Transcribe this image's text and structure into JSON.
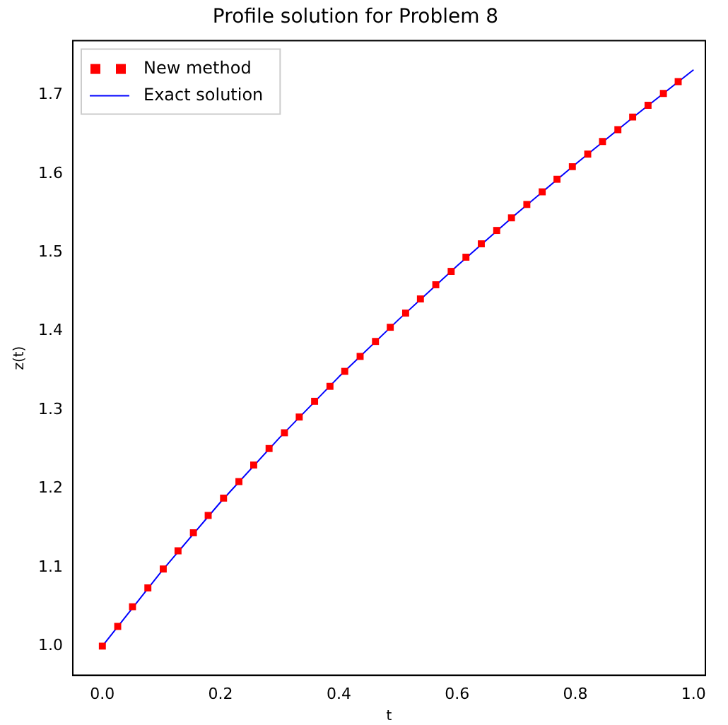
{
  "chart_data": {
    "type": "line",
    "title": "Profile solution for Problem 8",
    "xlabel": "t",
    "ylabel": "z(t)",
    "xlim": [
      -0.05,
      1.02
    ],
    "xticks": [
      {
        "value": 0,
        "label": "0.0"
      },
      0.2,
      0.4,
      0.6,
      0.8,
      {
        "value": 1,
        "label": "1.0"
      }
    ],
    "ylim": [
      0.963,
      1.769
    ],
    "yticks": [
      {
        "value": 1,
        "label": "1.0"
      },
      1.1,
      1.2,
      1.3,
      1.4,
      1.5,
      1.6,
      1.7
    ],
    "grid": false,
    "legend": "top left",
    "series": [
      {
        "name": "New method",
        "type": "scatter",
        "marker": "square",
        "color": "#ff0000",
        "x": [
          0,
          0.026,
          0.051,
          0.077,
          0.103,
          0.128,
          0.154,
          0.179,
          0.205,
          0.231,
          0.256,
          0.282,
          0.308,
          0.333,
          0.359,
          0.385,
          0.41,
          0.436,
          0.462,
          0.487,
          0.513,
          0.538,
          0.564,
          0.59,
          0.615,
          0.641,
          0.667,
          0.692,
          0.718,
          0.744,
          0.769,
          0.795,
          0.821,
          0.846,
          0.872,
          0.897,
          0.923,
          0.949,
          0.974
        ],
        "values": [
          1.0,
          1.025,
          1.05,
          1.074,
          1.098,
          1.121,
          1.144,
          1.166,
          1.188,
          1.209,
          1.23,
          1.251,
          1.271,
          1.291,
          1.311,
          1.33,
          1.349,
          1.368,
          1.387,
          1.405,
          1.423,
          1.441,
          1.459,
          1.476,
          1.494,
          1.511,
          1.528,
          1.544,
          1.561,
          1.577,
          1.593,
          1.609,
          1.625,
          1.641,
          1.656,
          1.672,
          1.687,
          1.702,
          1.717
        ]
      },
      {
        "name": "Exact solution",
        "type": "line",
        "marker": "none",
        "line_style": "solid",
        "color": "#0000ff",
        "x": [
          0,
          0.1,
          0.2,
          0.3,
          0.4,
          0.5,
          0.6,
          0.7,
          0.8,
          0.9,
          1.0
        ],
        "values": [
          1.0,
          1.095,
          1.183,
          1.265,
          1.342,
          1.414,
          1.483,
          1.549,
          1.612,
          1.673,
          1.732
        ]
      }
    ]
  }
}
